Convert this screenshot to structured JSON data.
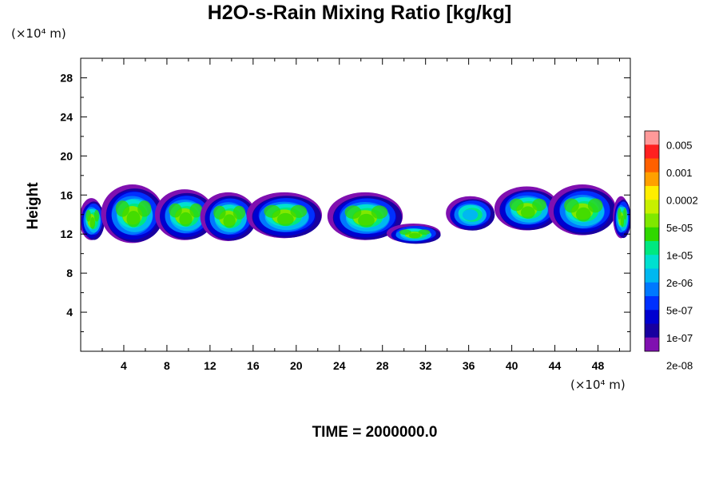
{
  "chart_data": {
    "type": "heatmap",
    "title": "H2O-s-Rain Mixing Ratio [kg/kg]",
    "ylabel": "Height",
    "xlabel": "",
    "y_units": "(×10⁴ m)",
    "x_units": "(×10⁴ m)",
    "x_ticks": [
      4,
      8,
      12,
      16,
      20,
      24,
      28,
      32,
      36,
      40,
      44,
      48
    ],
    "y_ticks": [
      4,
      8,
      12,
      16,
      20,
      24,
      28
    ],
    "xlim": [
      0,
      51
    ],
    "ylim": [
      0,
      30
    ],
    "footer": "TIME = 2000000.0",
    "colorbar": {
      "labels": [
        "0.005",
        "0.001",
        "0.0002",
        "5e-05",
        "1e-05",
        "2e-06",
        "5e-07",
        "1e-07",
        "2e-08"
      ],
      "colors": [
        "#ff9999",
        "#ff2020",
        "#ff6000",
        "#ffa000",
        "#ffee00",
        "#c8f000",
        "#80e800",
        "#30d800",
        "#00e880",
        "#00e0d0",
        "#00b8f0",
        "#0078ff",
        "#0030ff",
        "#0000d0",
        "#1800a0",
        "#8010b0"
      ]
    },
    "cells": [
      {
        "x0": 0,
        "x1": 2.2,
        "y0": 11.3,
        "y1": 15.6,
        "core": "#80e800"
      },
      {
        "x0": 2.0,
        "x1": 7.8,
        "y0": 11.0,
        "y1": 17.0,
        "core": "#80e800"
      },
      {
        "x0": 7.0,
        "x1": 12.5,
        "y0": 11.3,
        "y1": 16.5,
        "core": "#80e800"
      },
      {
        "x0": 11.2,
        "x1": 16.4,
        "y0": 11.2,
        "y1": 16.2,
        "core": "#80e800"
      },
      {
        "x0": 15.5,
        "x1": 22.5,
        "y0": 11.5,
        "y1": 16.2,
        "core": "#80e800"
      },
      {
        "x0": 23.0,
        "x1": 30.0,
        "y0": 11.3,
        "y1": 16.2,
        "core": "#80e800"
      },
      {
        "x0": 28.5,
        "x1": 33.5,
        "y0": 11.0,
        "y1": 13.0,
        "core": "#80e800"
      },
      {
        "x0": 34.0,
        "x1": 38.5,
        "y0": 12.3,
        "y1": 15.8,
        "core": "#00b8f0"
      },
      {
        "x0": 38.5,
        "x1": 44.5,
        "y0": 12.3,
        "y1": 16.8,
        "core": "#80e800"
      },
      {
        "x0": 43.5,
        "x1": 49.8,
        "y0": 11.8,
        "y1": 17.0,
        "core": "#80e800"
      },
      {
        "x0": 49.5,
        "x1": 51.0,
        "y0": 11.5,
        "y1": 15.8,
        "core": "#80e800"
      }
    ]
  }
}
